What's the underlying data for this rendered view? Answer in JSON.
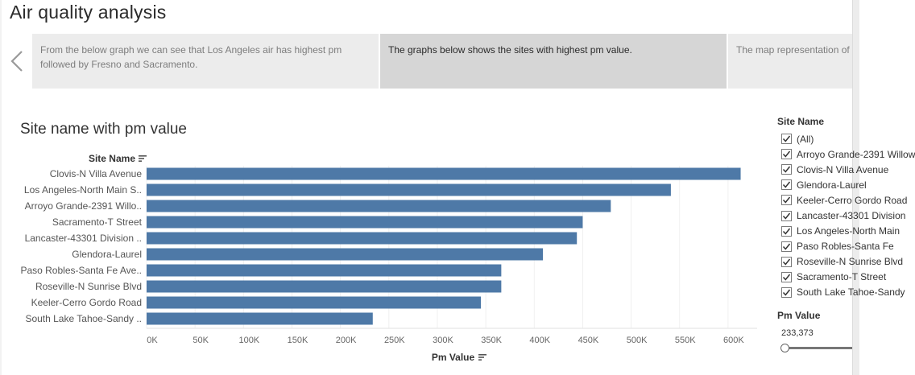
{
  "dashboard": {
    "title": "Air quality analysis"
  },
  "story": {
    "points": [
      "From the below graph we can see that Los Angeles air has highest pm followed by Fresno and Sacramento.",
      "The graphs below shows the sites with highest pm value.",
      "The map representation of"
    ],
    "active_index": 1
  },
  "chart": {
    "title": "Site name with pm value",
    "row_header": "Site Name",
    "x_axis_title": "Pm Value"
  },
  "chart_data": {
    "type": "bar",
    "orientation": "horizontal",
    "title": "Site name with pm value",
    "xlabel": "Pm Value",
    "ylabel": "Site Name",
    "categories": [
      "Clovis-N Villa Avenue",
      "Los Angeles-North Main S..",
      "Arroyo Grande-2391 Willo..",
      "Sacramento-T Street",
      "Lancaster-43301 Division ..",
      "Glendora-Laurel",
      "Paso Robles-Santa Fe Ave..",
      "Roseville-N Sunrise Blvd",
      "Keeler-Cerro Gordo Road",
      "South Lake Tahoe-Sandy .."
    ],
    "values": [
      613000,
      541000,
      479000,
      450000,
      444000,
      409000,
      366000,
      366000,
      345000,
      233373
    ],
    "xlim": [
      0,
      630000
    ],
    "ticks": [
      0,
      50000,
      100000,
      150000,
      200000,
      250000,
      300000,
      350000,
      400000,
      450000,
      500000,
      550000,
      600000
    ],
    "tick_labels": [
      "0K",
      "50K",
      "100K",
      "150K",
      "200K",
      "250K",
      "300K",
      "350K",
      "400K",
      "450K",
      "500K",
      "550K",
      "600K"
    ],
    "bar_color": "#4e79a7",
    "grid": "vertical"
  },
  "filters": {
    "site_name": {
      "title": "Site Name",
      "items": [
        {
          "label": "(All)",
          "checked": true
        },
        {
          "label": "Arroyo Grande-2391 Willow",
          "checked": true
        },
        {
          "label": "Clovis-N Villa Avenue",
          "checked": true
        },
        {
          "label": "Glendora-Laurel",
          "checked": true
        },
        {
          "label": "Keeler-Cerro Gordo Road",
          "checked": true
        },
        {
          "label": "Lancaster-43301 Division",
          "checked": true
        },
        {
          "label": "Los Angeles-North Main",
          "checked": true
        },
        {
          "label": "Paso Robles-Santa Fe",
          "checked": true
        },
        {
          "label": "Roseville-N Sunrise Blvd",
          "checked": true
        },
        {
          "label": "Sacramento-T Street",
          "checked": true
        },
        {
          "label": "South Lake Tahoe-Sandy",
          "checked": true
        }
      ]
    },
    "pm_value": {
      "title": "Pm Value",
      "min_display": "233,373",
      "position_fraction": 0
    }
  },
  "icons": {
    "prev": "chevron-left-icon",
    "sort": "sort-descending-icon",
    "check": "check-icon"
  }
}
